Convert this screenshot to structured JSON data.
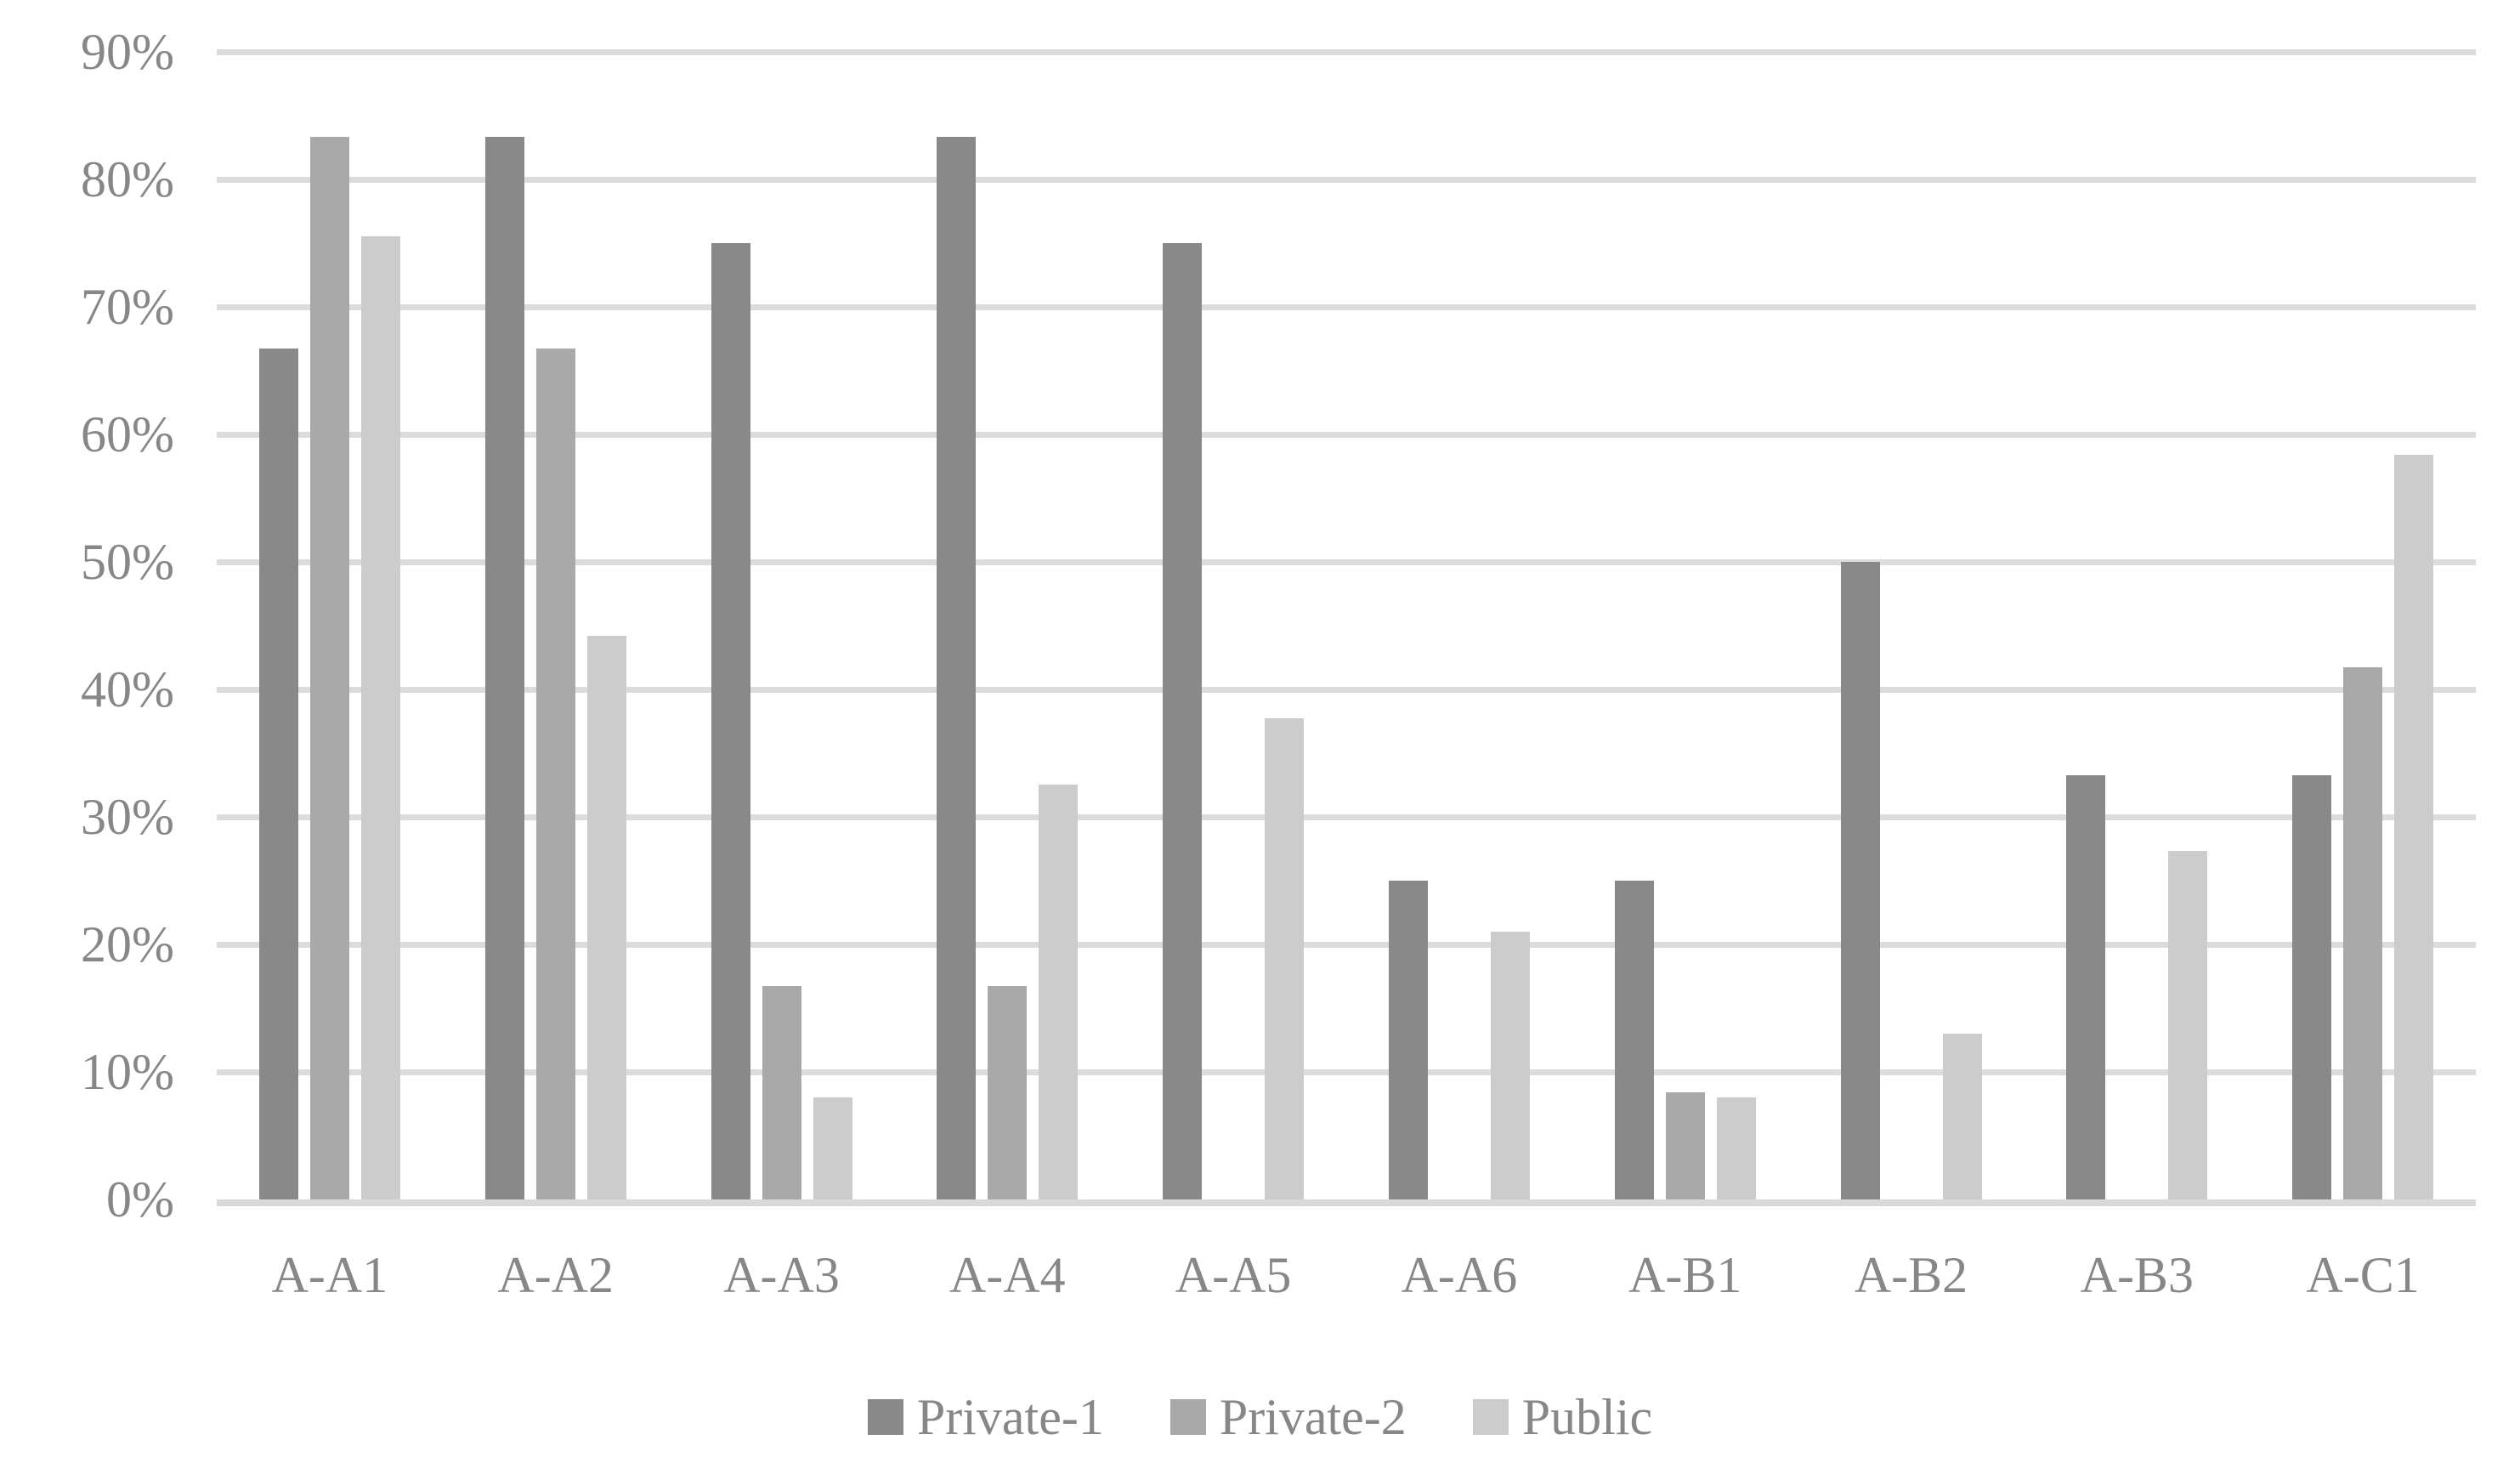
{
  "chart_data": {
    "type": "bar",
    "title": "",
    "categories": [
      "A-A1",
      "A-A2",
      "A-A3",
      "A-A4",
      "A-A5",
      "A-A6",
      "A-B1",
      "A-B2",
      "A-B3",
      "A-C1"
    ],
    "series": [
      {
        "name": "Private-1",
        "color": "#898989",
        "values": [
          66.7,
          83.3,
          75,
          83.3,
          75,
          25,
          25,
          50,
          33.3,
          33.3
        ]
      },
      {
        "name": "Private-2",
        "color": "#a9a9a9",
        "values": [
          83.3,
          66.7,
          16.7,
          16.7,
          0,
          0,
          8.4,
          0,
          0,
          41.7
        ]
      },
      {
        "name": "Public",
        "color": "#cccccc",
        "values": [
          75.5,
          44.2,
          8,
          32.5,
          37.7,
          21,
          8,
          13,
          27.3,
          58.4
        ]
      }
    ],
    "y_axis": {
      "min": 0,
      "max": 90,
      "step": 10,
      "tick_labels": [
        "0%",
        "10%",
        "20%",
        "30%",
        "40%",
        "50%",
        "60%",
        "70%",
        "80%",
        "90%"
      ]
    },
    "xlabel": "",
    "ylabel": "",
    "grid": true,
    "legend_position": "bottom",
    "colors": {
      "gridline": "#dcdcdc",
      "axis_line": "#d9d9d9",
      "axis_text": "#878787"
    }
  }
}
